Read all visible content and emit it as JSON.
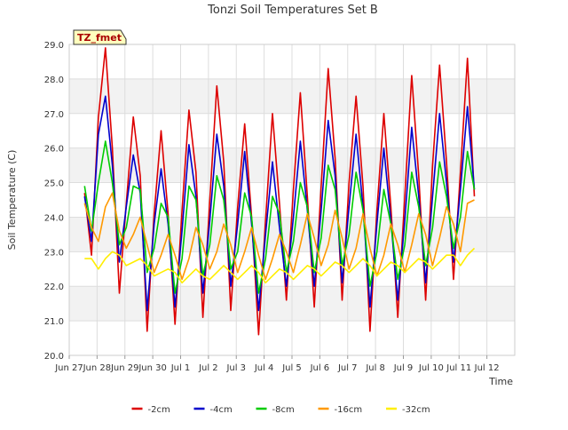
{
  "chart_data": {
    "type": "line",
    "title": "Tonzi Soil Temperatures Set B",
    "xlabel": "Time",
    "ylabel": "Soil Temperature (C)",
    "site_badge": "TZ_fmet",
    "ylim": [
      20.0,
      29.0
    ],
    "xlim": [
      0,
      16
    ],
    "yticks": [
      "20.0",
      "21.0",
      "22.0",
      "23.0",
      "24.0",
      "25.0",
      "26.0",
      "27.0",
      "28.0",
      "29.0"
    ],
    "xticks": [
      "Jun 27",
      "Jun 28",
      "Jun 29",
      "Jun 30",
      "Jul 1",
      "Jul 2",
      "Jul 3",
      "Jul 4",
      "Jul 5",
      "Jul 6",
      "Jul 7",
      "Jul 8",
      "Jul 9",
      "Jul 10",
      "Jul 11",
      "Jul 12"
    ],
    "grid": true,
    "legend_position": "bottom-center",
    "sampling": {
      "x_start_day": 0.55,
      "x_end_day": 14.55,
      "step_day": 0.25
    },
    "series": [
      {
        "name": "-2cm",
        "color": "#dd0000",
        "values": [
          24.7,
          22.9,
          26.9,
          28.9,
          26.0,
          21.8,
          24.4,
          26.9,
          25.2,
          20.7,
          24.1,
          26.5,
          24.1,
          20.9,
          24.2,
          27.1,
          25.3,
          21.1,
          24.5,
          27.8,
          25.6,
          21.3,
          24.3,
          26.7,
          24.0,
          20.6,
          23.9,
          27.0,
          24.4,
          21.6,
          24.8,
          27.6,
          24.6,
          21.4,
          24.9,
          28.3,
          25.7,
          21.6,
          25.0,
          27.5,
          24.9,
          20.7,
          24.2,
          27.0,
          24.3,
          21.1,
          24.6,
          28.1,
          25.2,
          21.6,
          25.5,
          28.4,
          25.6,
          22.2,
          25.3,
          28.6,
          24.6
        ]
      },
      {
        "name": "-4cm",
        "color": "#0000cc",
        "values": [
          24.6,
          23.3,
          26.4,
          27.5,
          25.5,
          22.7,
          24.3,
          25.8,
          24.7,
          21.3,
          23.8,
          25.4,
          23.8,
          21.4,
          23.6,
          26.1,
          24.6,
          21.8,
          23.9,
          26.4,
          24.9,
          22.0,
          23.8,
          25.9,
          23.8,
          21.3,
          23.5,
          25.6,
          23.7,
          22.0,
          24.0,
          26.2,
          24.2,
          22.0,
          24.2,
          26.8,
          25.2,
          22.1,
          24.3,
          26.4,
          24.3,
          21.4,
          23.8,
          26.0,
          23.9,
          21.6,
          23.9,
          26.6,
          24.6,
          22.1,
          24.6,
          27.0,
          25.0,
          22.7,
          24.8,
          27.2,
          24.8
        ]
      },
      {
        "name": "-8cm",
        "color": "#00cc00",
        "values": [
          24.9,
          23.6,
          25.0,
          26.2,
          25.0,
          23.2,
          23.7,
          24.9,
          24.8,
          22.4,
          23.1,
          24.4,
          24.0,
          21.8,
          22.8,
          24.9,
          24.5,
          22.3,
          23.2,
          25.2,
          24.5,
          22.5,
          23.0,
          24.7,
          24.0,
          21.8,
          22.8,
          24.6,
          24.1,
          22.4,
          23.3,
          25.0,
          24.3,
          22.4,
          23.4,
          25.5,
          24.8,
          22.6,
          23.5,
          25.3,
          24.2,
          22.0,
          23.0,
          24.8,
          23.8,
          22.2,
          23.2,
          25.3,
          24.3,
          22.6,
          23.7,
          25.6,
          24.6,
          23.1,
          24.0,
          25.9,
          24.8
        ]
      },
      {
        "name": "-16cm",
        "color": "#ff9900",
        "values": [
          24.4,
          23.7,
          23.3,
          24.3,
          24.7,
          23.6,
          23.1,
          23.5,
          24.0,
          23.2,
          22.4,
          22.9,
          23.5,
          22.9,
          22.2,
          22.8,
          23.7,
          23.2,
          22.5,
          23.0,
          23.8,
          23.2,
          22.4,
          23.0,
          23.7,
          22.9,
          22.2,
          22.8,
          23.5,
          23.0,
          22.4,
          23.2,
          24.1,
          23.4,
          22.6,
          23.2,
          24.2,
          23.4,
          22.5,
          23.1,
          24.1,
          23.1,
          22.3,
          22.9,
          23.8,
          23.2,
          22.4,
          23.2,
          24.1,
          23.5,
          22.6,
          23.4,
          24.3,
          23.8,
          23.0,
          24.4,
          24.5
        ]
      },
      {
        "name": "-32cm",
        "color": "#ffee00",
        "values": [
          22.8,
          22.8,
          22.5,
          22.8,
          23.0,
          22.9,
          22.6,
          22.7,
          22.8,
          22.6,
          22.3,
          22.4,
          22.5,
          22.4,
          22.1,
          22.3,
          22.5,
          22.3,
          22.2,
          22.4,
          22.6,
          22.4,
          22.2,
          22.4,
          22.6,
          22.4,
          22.1,
          22.3,
          22.5,
          22.4,
          22.2,
          22.4,
          22.6,
          22.5,
          22.3,
          22.5,
          22.7,
          22.6,
          22.4,
          22.6,
          22.8,
          22.6,
          22.3,
          22.5,
          22.7,
          22.6,
          22.4,
          22.6,
          22.8,
          22.7,
          22.5,
          22.7,
          22.9,
          22.9,
          22.6,
          22.9,
          23.1
        ]
      }
    ]
  }
}
